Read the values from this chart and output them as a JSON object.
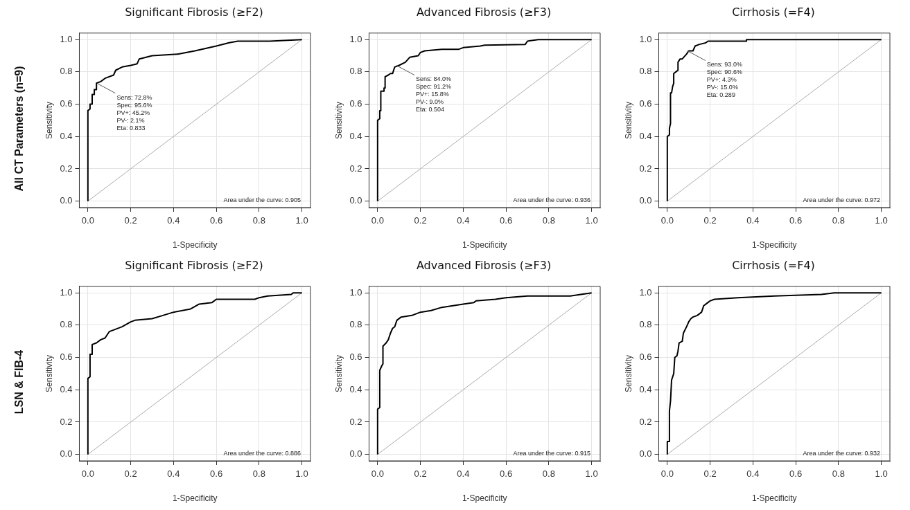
{
  "chart_data": [
    {
      "type": "line",
      "title": "Significant Fibrosis (≥F2)",
      "xlabel": "1-Specificity",
      "ylabel": "Sensitivity",
      "xlim": [
        -0.04,
        1.04
      ],
      "ylim": [
        -0.04,
        1.04
      ],
      "xticks": [
        {
          "value": 0,
          "label": "0.0"
        },
        {
          "value": 0.2,
          "label": "0.2"
        },
        {
          "value": 0.4,
          "label": "0.4"
        },
        {
          "value": 0.6,
          "label": "0.6"
        },
        {
          "value": 0.8,
          "label": "0.8"
        },
        {
          "value": 1,
          "label": "1.0"
        }
      ],
      "yticks": [
        {
          "value": 0,
          "label": "0.0"
        },
        {
          "value": 0.2,
          "label": "0.2"
        },
        {
          "value": 0.4,
          "label": "0.4"
        },
        {
          "value": 0.6,
          "label": "0.6"
        },
        {
          "value": 0.8,
          "label": "0.8"
        },
        {
          "value": 1,
          "label": "1.0"
        }
      ],
      "grid": true,
      "legend": false,
      "marker": "none",
      "line_style": "solid",
      "series": [
        {
          "color": "#000000",
          "x": [
            0,
            0,
            0.01,
            0.01,
            0.02,
            0.02,
            0.03,
            0.03,
            0.04,
            0.04,
            0.06,
            0.08,
            0.12,
            0.13,
            0.16,
            0.2,
            0.23,
            0.24,
            0.3,
            0.42,
            0.5,
            0.6,
            0.66,
            0.7,
            0.85,
            1
          ],
          "values": [
            0,
            0.56,
            0.57,
            0.6,
            0.6,
            0.66,
            0.66,
            0.69,
            0.69,
            0.73,
            0.74,
            0.76,
            0.78,
            0.81,
            0.83,
            0.84,
            0.85,
            0.88,
            0.9,
            0.91,
            0.93,
            0.96,
            0.98,
            0.99,
            0.99,
            1
          ]
        },
        {
          "color": "#aaaaaa",
          "x": [
            0,
            1
          ],
          "values": [
            0,
            1
          ]
        }
      ],
      "annotations": [
        "All CT Parameters (n=9)",
        {
          "text": "Sens: 72.8%\nSpec: 95.6%\nPV+: 45.2%\nPV-: 2.1%\nEta: 0.833",
          "x": 0.044,
          "y": 0.728
        },
        "Area under the curve: 0.905"
      ]
    },
    {
      "type": "line",
      "title": "Advanced Fibrosis (≥F3)",
      "xlabel": "1-Specificity",
      "ylabel": "Sensitivity",
      "xlim": [
        -0.04,
        1.04
      ],
      "ylim": [
        -0.04,
        1.04
      ],
      "xticks": [
        {
          "value": 0,
          "label": "0.0"
        },
        {
          "value": 0.2,
          "label": "0.2"
        },
        {
          "value": 0.4,
          "label": "0.4"
        },
        {
          "value": 0.6,
          "label": "0.6"
        },
        {
          "value": 0.8,
          "label": "0.8"
        },
        {
          "value": 1,
          "label": "1.0"
        }
      ],
      "yticks": [
        {
          "value": 0,
          "label": "0.0"
        },
        {
          "value": 0.2,
          "label": "0.2"
        },
        {
          "value": 0.4,
          "label": "0.4"
        },
        {
          "value": 0.6,
          "label": "0.6"
        },
        {
          "value": 0.8,
          "label": "0.8"
        },
        {
          "value": 1,
          "label": "1.0"
        }
      ],
      "grid": true,
      "legend": false,
      "marker": "none",
      "line_style": "solid",
      "series": [
        {
          "color": "#000000",
          "x": [
            0,
            0,
            0.01,
            0.01,
            0.015,
            0.015,
            0.03,
            0.03,
            0.035,
            0.035,
            0.05,
            0.06,
            0.07,
            0.08,
            0.1,
            0.13,
            0.15,
            0.19,
            0.2,
            0.22,
            0.3,
            0.38,
            0.4,
            0.48,
            0.5,
            0.69,
            0.7,
            0.75,
            1
          ],
          "values": [
            0,
            0.5,
            0.51,
            0.56,
            0.56,
            0.68,
            0.68,
            0.7,
            0.7,
            0.77,
            0.78,
            0.79,
            0.79,
            0.83,
            0.84,
            0.86,
            0.89,
            0.9,
            0.92,
            0.93,
            0.94,
            0.94,
            0.95,
            0.96,
            0.965,
            0.97,
            0.99,
            1,
            1
          ]
        },
        {
          "color": "#aaaaaa",
          "x": [
            0,
            1
          ],
          "values": [
            0,
            1
          ]
        }
      ],
      "annotations": [
        {
          "text": "Sens: 84.0%\nSpec: 91.2%\nPV+: 15.8%\nPV-: 9.0%\nEta: 0.504",
          "x": 0.088,
          "y": 0.84
        },
        "Area under the curve: 0.936"
      ]
    },
    {
      "type": "line",
      "title": "Cirrhosis (=F4)",
      "xlabel": "1-Specificity",
      "ylabel": "Sensitivity",
      "xlim": [
        -0.04,
        1.04
      ],
      "ylim": [
        -0.04,
        1.04
      ],
      "xticks": [
        {
          "value": 0,
          "label": "0.0"
        },
        {
          "value": 0.2,
          "label": "0.2"
        },
        {
          "value": 0.4,
          "label": "0.4"
        },
        {
          "value": 0.6,
          "label": "0.6"
        },
        {
          "value": 0.8,
          "label": "0.8"
        },
        {
          "value": 1,
          "label": "1.0"
        }
      ],
      "yticks": [
        {
          "value": 0,
          "label": "0.0"
        },
        {
          "value": 0.2,
          "label": "0.2"
        },
        {
          "value": 0.4,
          "label": "0.4"
        },
        {
          "value": 0.6,
          "label": "0.6"
        },
        {
          "value": 0.8,
          "label": "0.8"
        },
        {
          "value": 1,
          "label": "1.0"
        }
      ],
      "grid": true,
      "legend": false,
      "marker": "none",
      "line_style": "solid",
      "series": [
        {
          "color": "#000000",
          "x": [
            0,
            0,
            0.01,
            0.01,
            0.015,
            0.015,
            0.02,
            0.025,
            0.03,
            0.03,
            0.04,
            0.05,
            0.05,
            0.06,
            0.07,
            0.09,
            0.1,
            0.12,
            0.13,
            0.15,
            0.18,
            0.19,
            0.37,
            0.37,
            1
          ],
          "values": [
            0,
            0.4,
            0.41,
            0.45,
            0.48,
            0.67,
            0.67,
            0.71,
            0.73,
            0.79,
            0.8,
            0.81,
            0.86,
            0.88,
            0.88,
            0.91,
            0.93,
            0.93,
            0.96,
            0.97,
            0.98,
            0.99,
            0.99,
            1,
            1
          ]
        },
        {
          "color": "#aaaaaa",
          "x": [
            0,
            1
          ],
          "values": [
            0,
            1
          ]
        }
      ],
      "annotations": [
        {
          "text": "Sens: 93.0%\nSpec: 90.6%\nPV+: 4.3%\nPV-: 15.0%\nEta: 0.289",
          "x": 0.094,
          "y": 0.93
        },
        "Area under the curve: 0.972"
      ]
    },
    {
      "type": "line",
      "title": "Significant Fibrosis (≥F2)",
      "xlabel": "1-Specificity",
      "ylabel": "Sensitivity",
      "xlim": [
        -0.04,
        1.04
      ],
      "ylim": [
        -0.04,
        1.04
      ],
      "xticks": [
        {
          "value": 0,
          "label": "0.0"
        },
        {
          "value": 0.2,
          "label": "0.2"
        },
        {
          "value": 0.4,
          "label": "0.4"
        },
        {
          "value": 0.6,
          "label": "0.6"
        },
        {
          "value": 0.8,
          "label": "0.8"
        },
        {
          "value": 1,
          "label": "1.0"
        }
      ],
      "yticks": [
        {
          "value": 0,
          "label": "0.0"
        },
        {
          "value": 0.2,
          "label": "0.2"
        },
        {
          "value": 0.4,
          "label": "0.4"
        },
        {
          "value": 0.6,
          "label": "0.6"
        },
        {
          "value": 0.8,
          "label": "0.8"
        },
        {
          "value": 1,
          "label": "1.0"
        }
      ],
      "grid": true,
      "legend": false,
      "marker": "none",
      "line_style": "solid",
      "series": [
        {
          "color": "#000000",
          "x": [
            0,
            0,
            0.01,
            0.01,
            0.02,
            0.02,
            0.04,
            0.06,
            0.08,
            0.1,
            0.12,
            0.16,
            0.2,
            0.22,
            0.3,
            0.35,
            0.4,
            0.48,
            0.52,
            0.58,
            0.6,
            0.78,
            0.8,
            0.84,
            0.95,
            0.96,
            1
          ],
          "values": [
            0,
            0.47,
            0.48,
            0.62,
            0.62,
            0.68,
            0.69,
            0.71,
            0.72,
            0.76,
            0.77,
            0.79,
            0.82,
            0.83,
            0.84,
            0.86,
            0.88,
            0.9,
            0.93,
            0.94,
            0.96,
            0.96,
            0.97,
            0.98,
            0.99,
            1,
            1
          ]
        },
        {
          "color": "#aaaaaa",
          "x": [
            0,
            1
          ],
          "values": [
            0,
            1
          ]
        }
      ],
      "annotations": [
        "LSN & FIB-4",
        "Area under the curve: 0.886"
      ]
    },
    {
      "type": "line",
      "title": "Advanced Fibrosis (≥F3)",
      "xlabel": "1-Specificity",
      "ylabel": "Sensitivity",
      "xlim": [
        -0.04,
        1.04
      ],
      "ylim": [
        -0.04,
        1.04
      ],
      "xticks": [
        {
          "value": 0,
          "label": "0.0"
        },
        {
          "value": 0.2,
          "label": "0.2"
        },
        {
          "value": 0.4,
          "label": "0.4"
        },
        {
          "value": 0.6,
          "label": "0.6"
        },
        {
          "value": 0.8,
          "label": "0.8"
        },
        {
          "value": 1,
          "label": "1.0"
        }
      ],
      "yticks": [
        {
          "value": 0,
          "label": "0.0"
        },
        {
          "value": 0.2,
          "label": "0.2"
        },
        {
          "value": 0.4,
          "label": "0.4"
        },
        {
          "value": 0.6,
          "label": "0.6"
        },
        {
          "value": 0.8,
          "label": "0.8"
        },
        {
          "value": 1,
          "label": "1.0"
        }
      ],
      "grid": true,
      "legend": false,
      "marker": "none",
      "line_style": "solid",
      "series": [
        {
          "color": "#000000",
          "x": [
            0,
            0,
            0.01,
            0.01,
            0.02,
            0.025,
            0.025,
            0.04,
            0.05,
            0.06,
            0.07,
            0.08,
            0.09,
            0.11,
            0.16,
            0.2,
            0.25,
            0.3,
            0.4,
            0.45,
            0.46,
            0.55,
            0.6,
            0.7,
            0.9,
            0.95,
            1
          ],
          "values": [
            0,
            0.28,
            0.29,
            0.52,
            0.55,
            0.56,
            0.67,
            0.69,
            0.71,
            0.75,
            0.78,
            0.79,
            0.83,
            0.85,
            0.86,
            0.88,
            0.89,
            0.91,
            0.93,
            0.94,
            0.95,
            0.96,
            0.97,
            0.98,
            0.98,
            0.99,
            1
          ]
        },
        {
          "color": "#aaaaaa",
          "x": [
            0,
            1
          ],
          "values": [
            0,
            1
          ]
        }
      ],
      "annotations": [
        "Area under the curve: 0.915"
      ]
    },
    {
      "type": "line",
      "title": "Cirrhosis (=F4)",
      "xlabel": "1-Specificity",
      "ylabel": "Sensitivity",
      "xlim": [
        -0.04,
        1.04
      ],
      "ylim": [
        -0.04,
        1.04
      ],
      "xticks": [
        {
          "value": 0,
          "label": "0.0"
        },
        {
          "value": 0.2,
          "label": "0.2"
        },
        {
          "value": 0.4,
          "label": "0.4"
        },
        {
          "value": 0.6,
          "label": "0.6"
        },
        {
          "value": 0.8,
          "label": "0.8"
        },
        {
          "value": 1,
          "label": "1.0"
        }
      ],
      "yticks": [
        {
          "value": 0,
          "label": "0.0"
        },
        {
          "value": 0.2,
          "label": "0.2"
        },
        {
          "value": 0.4,
          "label": "0.4"
        },
        {
          "value": 0.6,
          "label": "0.6"
        },
        {
          "value": 0.8,
          "label": "0.8"
        },
        {
          "value": 1,
          "label": "1.0"
        }
      ],
      "grid": true,
      "legend": false,
      "marker": "none",
      "line_style": "solid",
      "series": [
        {
          "color": "#000000",
          "x": [
            0,
            0,
            0.01,
            0.01,
            0.015,
            0.02,
            0.03,
            0.035,
            0.045,
            0.05,
            0.055,
            0.07,
            0.075,
            0.09,
            0.1,
            0.11,
            0.12,
            0.14,
            0.16,
            0.17,
            0.19,
            0.2,
            0.22,
            0.33,
            0.5,
            0.72,
            0.78,
            1
          ],
          "values": [
            0,
            0.08,
            0.08,
            0.27,
            0.33,
            0.46,
            0.5,
            0.6,
            0.61,
            0.64,
            0.69,
            0.7,
            0.75,
            0.79,
            0.82,
            0.84,
            0.85,
            0.86,
            0.88,
            0.92,
            0.94,
            0.95,
            0.96,
            0.97,
            0.98,
            0.99,
            1,
            1
          ]
        },
        {
          "color": "#aaaaaa",
          "x": [
            0,
            1
          ],
          "values": [
            0,
            1
          ]
        }
      ],
      "annotations": [
        "Area under the curve: 0.932"
      ]
    }
  ]
}
